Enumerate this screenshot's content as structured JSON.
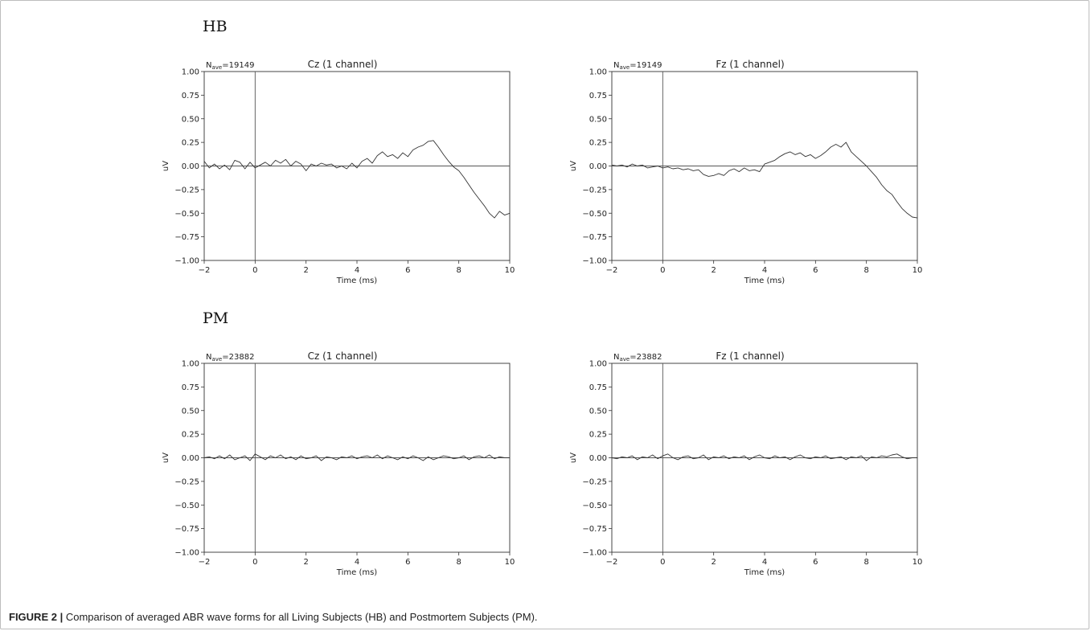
{
  "groups": [
    {
      "label": "HB"
    },
    {
      "label": "PM"
    }
  ],
  "caption": {
    "figure_label": "FIGURE 2 |",
    "text": "Comparison of averaged ABR wave forms for all Living Subjects (HB) and Postmortem Subjects (PM)."
  },
  "chart_data": [
    {
      "type": "line",
      "group": "HB",
      "title": "Cz (1 channel)",
      "nave_prefix": "N",
      "nave_sub": "ave",
      "nave_value": "=19149",
      "xlabel": "Time (ms)",
      "ylabel": "uV",
      "xlim": [
        -2,
        10
      ],
      "ylim": [
        -1.0,
        1.0
      ],
      "xticks": [
        -2,
        0,
        2,
        4,
        6,
        8,
        10
      ],
      "xticklabels": [
        "−2",
        "0",
        "2",
        "4",
        "6",
        "8",
        "10"
      ],
      "yticks": [
        1.0,
        0.75,
        0.5,
        0.25,
        0.0,
        -0.25,
        -0.5,
        -0.75,
        -1.0
      ],
      "yticklabels": [
        "1.00",
        "0.75",
        "0.50",
        "0.25",
        "0.00",
        "−0.25",
        "−0.50",
        "−0.75",
        "−1.00"
      ],
      "grid": false,
      "series": [
        {
          "x": [
            -2.0,
            -1.8,
            -1.6,
            -1.4,
            -1.2,
            -1.0,
            -0.8,
            -0.6,
            -0.4,
            -0.2,
            0.0,
            0.2,
            0.4,
            0.6,
            0.8,
            1.0,
            1.2,
            1.4,
            1.6,
            1.8,
            2.0,
            2.2,
            2.4,
            2.6,
            2.8,
            3.0,
            3.2,
            3.4,
            3.6,
            3.8,
            4.0,
            4.2,
            4.4,
            4.6,
            4.8,
            5.0,
            5.2,
            5.4,
            5.6,
            5.8,
            6.0,
            6.2,
            6.4,
            6.6,
            6.8,
            7.0,
            7.2,
            7.4,
            7.6,
            7.8,
            8.0,
            8.2,
            8.4,
            8.6,
            8.8,
            9.0,
            9.2,
            9.4,
            9.6,
            9.8,
            10.0
          ],
          "y": [
            0.05,
            -0.02,
            0.02,
            -0.03,
            0.01,
            -0.04,
            0.06,
            0.04,
            -0.03,
            0.04,
            -0.02,
            0.01,
            0.04,
            0.0,
            0.06,
            0.03,
            0.07,
            0.0,
            0.05,
            0.02,
            -0.05,
            0.02,
            0.0,
            0.03,
            0.01,
            0.02,
            -0.02,
            0.0,
            -0.03,
            0.03,
            -0.02,
            0.05,
            0.08,
            0.03,
            0.11,
            0.15,
            0.1,
            0.12,
            0.08,
            0.14,
            0.1,
            0.17,
            0.2,
            0.22,
            0.26,
            0.27,
            0.2,
            0.12,
            0.05,
            -0.01,
            -0.05,
            -0.12,
            -0.2,
            -0.28,
            -0.35,
            -0.42,
            -0.5,
            -0.55,
            -0.48,
            -0.52,
            -0.5
          ]
        }
      ]
    },
    {
      "type": "line",
      "group": "HB",
      "title": "Fz (1 channel)",
      "nave_prefix": "N",
      "nave_sub": "ave",
      "nave_value": "=19149",
      "xlabel": "Time (ms)",
      "ylabel": "uV",
      "xlim": [
        -2,
        10
      ],
      "ylim": [
        -1.0,
        1.0
      ],
      "xticks": [
        -2,
        0,
        2,
        4,
        6,
        8,
        10
      ],
      "xticklabels": [
        "−2",
        "0",
        "2",
        "4",
        "6",
        "8",
        "10"
      ],
      "yticks": [
        1.0,
        0.75,
        0.5,
        0.25,
        0.0,
        -0.25,
        -0.5,
        -0.75,
        -1.0
      ],
      "yticklabels": [
        "1.00",
        "0.75",
        "0.50",
        "0.25",
        "0.00",
        "−0.25",
        "−0.50",
        "−0.75",
        "−1.00"
      ],
      "grid": false,
      "series": [
        {
          "x": [
            -2.0,
            -1.8,
            -1.6,
            -1.4,
            -1.2,
            -1.0,
            -0.8,
            -0.6,
            -0.4,
            -0.2,
            0.0,
            0.2,
            0.4,
            0.6,
            0.8,
            1.0,
            1.2,
            1.4,
            1.6,
            1.8,
            2.0,
            2.2,
            2.4,
            2.6,
            2.8,
            3.0,
            3.2,
            3.4,
            3.6,
            3.8,
            4.0,
            4.2,
            4.4,
            4.6,
            4.8,
            5.0,
            5.2,
            5.4,
            5.6,
            5.8,
            6.0,
            6.2,
            6.4,
            6.6,
            6.8,
            7.0,
            7.2,
            7.4,
            7.6,
            7.8,
            8.0,
            8.2,
            8.4,
            8.6,
            8.8,
            9.0,
            9.2,
            9.4,
            9.6,
            9.8,
            10.0
          ],
          "y": [
            0.01,
            0.0,
            0.01,
            -0.01,
            0.02,
            0.0,
            0.01,
            -0.02,
            -0.01,
            0.0,
            -0.02,
            -0.01,
            -0.03,
            -0.02,
            -0.04,
            -0.03,
            -0.05,
            -0.04,
            -0.09,
            -0.11,
            -0.1,
            -0.08,
            -0.1,
            -0.05,
            -0.03,
            -0.06,
            -0.02,
            -0.05,
            -0.04,
            -0.06,
            0.02,
            0.04,
            0.06,
            0.1,
            0.13,
            0.15,
            0.12,
            0.14,
            0.1,
            0.12,
            0.08,
            0.11,
            0.15,
            0.2,
            0.23,
            0.2,
            0.25,
            0.15,
            0.1,
            0.05,
            0.0,
            -0.06,
            -0.12,
            -0.2,
            -0.26,
            -0.3,
            -0.38,
            -0.45,
            -0.5,
            -0.54,
            -0.55
          ]
        }
      ]
    },
    {
      "type": "line",
      "group": "PM",
      "title": "Cz (1 channel)",
      "nave_prefix": "N",
      "nave_sub": "ave",
      "nave_value": "=23882",
      "xlabel": "Time (ms)",
      "ylabel": "uV",
      "xlim": [
        -2,
        10
      ],
      "ylim": [
        -1.0,
        1.0
      ],
      "xticks": [
        -2,
        0,
        2,
        4,
        6,
        8,
        10
      ],
      "xticklabels": [
        "−2",
        "0",
        "2",
        "4",
        "6",
        "8",
        "10"
      ],
      "yticks": [
        1.0,
        0.75,
        0.5,
        0.25,
        0.0,
        -0.25,
        -0.5,
        -0.75,
        -1.0
      ],
      "yticklabels": [
        "1.00",
        "0.75",
        "0.50",
        "0.25",
        "0.00",
        "−0.25",
        "−0.50",
        "−0.75",
        "−1.00"
      ],
      "grid": false,
      "series": [
        {
          "x": [
            -2.0,
            -1.8,
            -1.6,
            -1.4,
            -1.2,
            -1.0,
            -0.8,
            -0.6,
            -0.4,
            -0.2,
            0.0,
            0.2,
            0.4,
            0.6,
            0.8,
            1.0,
            1.2,
            1.4,
            1.6,
            1.8,
            2.0,
            2.2,
            2.4,
            2.6,
            2.8,
            3.0,
            3.2,
            3.4,
            3.6,
            3.8,
            4.0,
            4.2,
            4.4,
            4.6,
            4.8,
            5.0,
            5.2,
            5.4,
            5.6,
            5.8,
            6.0,
            6.2,
            6.4,
            6.6,
            6.8,
            7.0,
            7.2,
            7.4,
            7.6,
            7.8,
            8.0,
            8.2,
            8.4,
            8.6,
            8.8,
            9.0,
            9.2,
            9.4,
            9.6,
            9.8,
            10.0
          ],
          "y": [
            0.0,
            0.01,
            -0.01,
            0.02,
            -0.01,
            0.03,
            -0.02,
            0.0,
            0.02,
            -0.03,
            0.04,
            0.01,
            -0.02,
            0.02,
            0.0,
            0.03,
            -0.01,
            0.01,
            -0.02,
            0.02,
            -0.01,
            0.0,
            0.02,
            -0.03,
            0.01,
            0.0,
            -0.02,
            0.01,
            0.0,
            0.02,
            -0.01,
            0.01,
            0.02,
            0.0,
            0.03,
            -0.01,
            0.02,
            0.0,
            -0.02,
            0.01,
            -0.01,
            0.02,
            0.0,
            -0.03,
            0.01,
            -0.02,
            0.0,
            0.02,
            0.01,
            -0.01,
            0.0,
            0.02,
            -0.02,
            0.01,
            0.02,
            0.0,
            0.03,
            -0.01,
            0.01,
            0.0,
            0.0
          ]
        }
      ]
    },
    {
      "type": "line",
      "group": "PM",
      "title": "Fz (1 channel)",
      "nave_prefix": "N",
      "nave_sub": "ave",
      "nave_value": "=23882",
      "xlabel": "Time (ms)",
      "ylabel": "uV",
      "xlim": [
        -2,
        10
      ],
      "ylim": [
        -1.0,
        1.0
      ],
      "xticks": [
        -2,
        0,
        2,
        4,
        6,
        8,
        10
      ],
      "xticklabels": [
        "−2",
        "0",
        "2",
        "4",
        "6",
        "8",
        "10"
      ],
      "yticks": [
        1.0,
        0.75,
        0.5,
        0.25,
        0.0,
        -0.25,
        -0.5,
        -0.75,
        -1.0
      ],
      "yticklabels": [
        "1.00",
        "0.75",
        "0.50",
        "0.25",
        "0.00",
        "−0.25",
        "−0.50",
        "−0.75",
        "−1.00"
      ],
      "grid": false,
      "series": [
        {
          "x": [
            -2.0,
            -1.8,
            -1.6,
            -1.4,
            -1.2,
            -1.0,
            -0.8,
            -0.6,
            -0.4,
            -0.2,
            0.0,
            0.2,
            0.4,
            0.6,
            0.8,
            1.0,
            1.2,
            1.4,
            1.6,
            1.8,
            2.0,
            2.2,
            2.4,
            2.6,
            2.8,
            3.0,
            3.2,
            3.4,
            3.6,
            3.8,
            4.0,
            4.2,
            4.4,
            4.6,
            4.8,
            5.0,
            5.2,
            5.4,
            5.6,
            5.8,
            6.0,
            6.2,
            6.4,
            6.6,
            6.8,
            7.0,
            7.2,
            7.4,
            7.6,
            7.8,
            8.0,
            8.2,
            8.4,
            8.6,
            8.8,
            9.0,
            9.2,
            9.4,
            9.6,
            9.8,
            10.0
          ],
          "y": [
            0.0,
            -0.01,
            0.01,
            0.0,
            0.02,
            -0.02,
            0.01,
            0.0,
            0.03,
            -0.01,
            0.02,
            0.04,
            0.0,
            -0.02,
            0.01,
            0.02,
            -0.01,
            0.0,
            0.03,
            -0.02,
            0.01,
            0.0,
            0.02,
            -0.01,
            0.01,
            0.0,
            0.02,
            -0.02,
            0.01,
            0.03,
            0.0,
            -0.01,
            0.02,
            0.0,
            0.01,
            -0.02,
            0.01,
            0.03,
            0.0,
            -0.01,
            0.01,
            0.0,
            0.02,
            -0.01,
            0.0,
            0.01,
            -0.02,
            0.01,
            0.0,
            0.02,
            -0.03,
            0.01,
            0.0,
            0.02,
            0.01,
            0.03,
            0.04,
            0.01,
            -0.01,
            0.0,
            0.0
          ]
        }
      ]
    }
  ]
}
